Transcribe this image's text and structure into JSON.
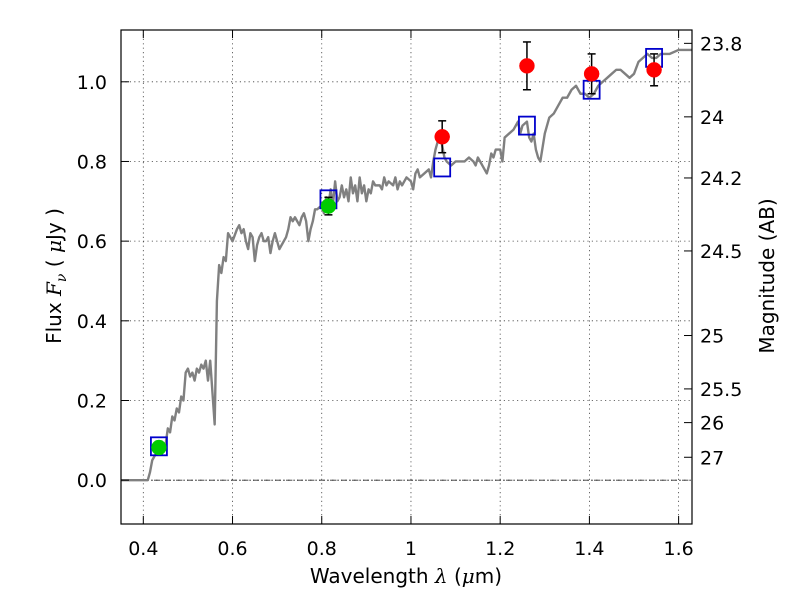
{
  "chart_data": {
    "type": "scatter",
    "xlabel": "Wavelength",
    "xlabel_symbol": "λ",
    "xlabel_unit_open": " (",
    "xlabel_unit_mu": "μ",
    "xlabel_unit_rest": "m)",
    "ylabel": "Flux",
    "ylabel_symbol": "F",
    "ylabel_subscript": "ν",
    "ylabel_unit_open": " ( ",
    "ylabel_unit_mu": "μ",
    "ylabel_unit_rest": "Jy )",
    "y2label": "Magnitude (AB)",
    "xlim": [
      0.35,
      1.63
    ],
    "ylim": [
      -0.11,
      1.13
    ],
    "grid": true,
    "x_ticks": [
      {
        "value": 0.4,
        "label": "0.4"
      },
      {
        "value": 0.6,
        "label": "0.6"
      },
      {
        "value": 0.8,
        "label": "0.8"
      },
      {
        "value": 1.0,
        "label": "1"
      },
      {
        "value": 1.2,
        "label": "1.2"
      },
      {
        "value": 1.4,
        "label": "1.4"
      },
      {
        "value": 1.6,
        "label": "1.6"
      }
    ],
    "y_ticks": [
      {
        "value": 0.0,
        "label": "0.0"
      },
      {
        "value": 0.2,
        "label": "0.2"
      },
      {
        "value": 0.4,
        "label": "0.4"
      },
      {
        "value": 0.6,
        "label": "0.6"
      },
      {
        "value": 0.8,
        "label": "0.8"
      },
      {
        "value": 1.0,
        "label": "1.0"
      }
    ],
    "y2_ticks": [
      {
        "label": "23.8",
        "flux": 1.0965
      },
      {
        "label": "24",
        "flux": 0.912
      },
      {
        "label": "24.2",
        "flux": 0.7586
      },
      {
        "label": "24.5",
        "flux": 0.5754
      },
      {
        "label": "25",
        "flux": 0.3631
      },
      {
        "label": "25.5",
        "flux": 0.2291
      },
      {
        "label": "26",
        "flux": 0.1445
      },
      {
        "label": "27",
        "flux": 0.0575
      }
    ],
    "series": [
      {
        "type": "line",
        "color": "#808080",
        "points": [
          [
            0.35,
            0.0
          ],
          [
            0.385,
            0.0
          ],
          [
            0.41,
            0.0
          ],
          [
            0.415,
            0.02
          ],
          [
            0.42,
            0.05
          ],
          [
            0.43,
            0.07
          ],
          [
            0.44,
            0.08
          ],
          [
            0.45,
            0.09
          ],
          [
            0.455,
            0.13
          ],
          [
            0.46,
            0.12
          ],
          [
            0.465,
            0.16
          ],
          [
            0.47,
            0.15
          ],
          [
            0.475,
            0.18
          ],
          [
            0.48,
            0.17
          ],
          [
            0.485,
            0.21
          ],
          [
            0.49,
            0.2
          ],
          [
            0.495,
            0.27
          ],
          [
            0.5,
            0.28
          ],
          [
            0.505,
            0.26
          ],
          [
            0.51,
            0.27
          ],
          [
            0.515,
            0.25
          ],
          [
            0.52,
            0.28
          ],
          [
            0.525,
            0.27
          ],
          [
            0.53,
            0.29
          ],
          [
            0.535,
            0.28
          ],
          [
            0.54,
            0.3
          ],
          [
            0.545,
            0.25
          ],
          [
            0.55,
            0.3
          ],
          [
            0.555,
            0.22
          ],
          [
            0.56,
            0.14
          ],
          [
            0.565,
            0.45
          ],
          [
            0.57,
            0.54
          ],
          [
            0.575,
            0.52
          ],
          [
            0.58,
            0.56
          ],
          [
            0.585,
            0.55
          ],
          [
            0.59,
            0.62
          ],
          [
            0.6,
            0.6
          ],
          [
            0.61,
            0.63
          ],
          [
            0.615,
            0.64
          ],
          [
            0.62,
            0.62
          ],
          [
            0.625,
            0.63
          ],
          [
            0.63,
            0.6
          ],
          [
            0.635,
            0.58
          ],
          [
            0.64,
            0.62
          ],
          [
            0.645,
            0.61
          ],
          [
            0.65,
            0.55
          ],
          [
            0.655,
            0.59
          ],
          [
            0.66,
            0.61
          ],
          [
            0.665,
            0.62
          ],
          [
            0.67,
            0.6
          ],
          [
            0.675,
            0.6
          ],
          [
            0.68,
            0.61
          ],
          [
            0.685,
            0.57
          ],
          [
            0.69,
            0.6
          ],
          [
            0.695,
            0.62
          ],
          [
            0.7,
            0.6
          ],
          [
            0.705,
            0.58
          ],
          [
            0.71,
            0.59
          ],
          [
            0.72,
            0.61
          ],
          [
            0.725,
            0.63
          ],
          [
            0.73,
            0.66
          ],
          [
            0.735,
            0.65
          ],
          [
            0.74,
            0.66
          ],
          [
            0.745,
            0.65
          ],
          [
            0.75,
            0.64
          ],
          [
            0.755,
            0.66
          ],
          [
            0.76,
            0.67
          ],
          [
            0.765,
            0.65
          ],
          [
            0.77,
            0.6
          ],
          [
            0.775,
            0.63
          ],
          [
            0.78,
            0.65
          ],
          [
            0.785,
            0.68
          ],
          [
            0.79,
            0.68
          ],
          [
            0.8,
            0.69
          ],
          [
            0.805,
            0.67
          ],
          [
            0.81,
            0.71
          ],
          [
            0.815,
            0.69
          ],
          [
            0.82,
            0.73
          ],
          [
            0.825,
            0.69
          ],
          [
            0.83,
            0.75
          ],
          [
            0.835,
            0.7
          ],
          [
            0.84,
            0.71
          ],
          [
            0.845,
            0.74
          ],
          [
            0.85,
            0.71
          ],
          [
            0.855,
            0.73
          ],
          [
            0.86,
            0.7
          ],
          [
            0.865,
            0.76
          ],
          [
            0.87,
            0.72
          ],
          [
            0.875,
            0.74
          ],
          [
            0.88,
            0.7
          ],
          [
            0.885,
            0.76
          ],
          [
            0.89,
            0.72
          ],
          [
            0.895,
            0.74
          ],
          [
            0.9,
            0.7
          ],
          [
            0.905,
            0.73
          ],
          [
            0.91,
            0.72
          ],
          [
            0.915,
            0.75
          ],
          [
            0.92,
            0.74
          ],
          [
            0.93,
            0.74
          ],
          [
            0.935,
            0.73
          ],
          [
            0.94,
            0.76
          ],
          [
            0.945,
            0.74
          ],
          [
            0.95,
            0.75
          ],
          [
            0.96,
            0.74
          ],
          [
            0.965,
            0.76
          ],
          [
            0.97,
            0.73
          ],
          [
            0.975,
            0.75
          ],
          [
            0.98,
            0.74
          ],
          [
            0.99,
            0.76
          ],
          [
            1.0,
            0.75
          ],
          [
            1.005,
            0.73
          ],
          [
            1.01,
            0.77
          ],
          [
            1.015,
            0.78
          ],
          [
            1.02,
            0.76
          ],
          [
            1.03,
            0.77
          ],
          [
            1.04,
            0.78
          ],
          [
            1.045,
            0.76
          ],
          [
            1.05,
            0.8
          ],
          [
            1.055,
            0.83
          ],
          [
            1.06,
            0.85
          ],
          [
            1.065,
            0.87
          ],
          [
            1.07,
            0.84
          ],
          [
            1.075,
            0.81
          ],
          [
            1.08,
            0.8
          ],
          [
            1.09,
            0.79
          ],
          [
            1.1,
            0.8
          ],
          [
            1.11,
            0.8
          ],
          [
            1.12,
            0.8
          ],
          [
            1.13,
            0.81
          ],
          [
            1.14,
            0.8
          ],
          [
            1.145,
            0.79
          ],
          [
            1.15,
            0.81
          ],
          [
            1.16,
            0.79
          ],
          [
            1.165,
            0.78
          ],
          [
            1.17,
            0.77
          ],
          [
            1.175,
            0.79
          ],
          [
            1.18,
            0.82
          ],
          [
            1.185,
            0.81
          ],
          [
            1.19,
            0.83
          ],
          [
            1.2,
            0.83
          ],
          [
            1.205,
            0.8
          ],
          [
            1.21,
            0.86
          ],
          [
            1.22,
            0.87
          ],
          [
            1.23,
            0.88
          ],
          [
            1.24,
            0.9
          ],
          [
            1.245,
            0.87
          ],
          [
            1.25,
            0.89
          ],
          [
            1.26,
            0.9
          ],
          [
            1.265,
            0.86
          ],
          [
            1.27,
            0.85
          ],
          [
            1.275,
            0.87
          ],
          [
            1.28,
            0.83
          ],
          [
            1.285,
            0.81
          ],
          [
            1.29,
            0.8
          ],
          [
            1.3,
            0.87
          ],
          [
            1.31,
            0.91
          ],
          [
            1.32,
            0.92
          ],
          [
            1.33,
            0.94
          ],
          [
            1.34,
            0.96
          ],
          [
            1.35,
            0.96
          ],
          [
            1.36,
            0.98
          ],
          [
            1.37,
            0.99
          ],
          [
            1.38,
            0.97
          ],
          [
            1.39,
            0.97
          ],
          [
            1.4,
            0.96
          ],
          [
            1.41,
            0.97
          ],
          [
            1.42,
            0.99
          ],
          [
            1.43,
            1.0
          ],
          [
            1.44,
            1.01
          ],
          [
            1.45,
            1.02
          ],
          [
            1.46,
            1.03
          ],
          [
            1.47,
            1.03
          ],
          [
            1.48,
            1.02
          ],
          [
            1.49,
            1.01
          ],
          [
            1.5,
            1.02
          ],
          [
            1.51,
            1.05
          ],
          [
            1.52,
            1.06
          ],
          [
            1.53,
            1.07
          ],
          [
            1.54,
            1.06
          ],
          [
            1.55,
            1.06
          ],
          [
            1.56,
            1.07
          ],
          [
            1.58,
            1.07
          ],
          [
            1.6,
            1.08
          ],
          [
            1.63,
            1.08
          ]
        ]
      },
      {
        "type": "scatter",
        "marker": "square",
        "color": "#0000cc",
        "points": [
          [
            0.435,
            0.085
          ],
          [
            0.815,
            0.705
          ],
          [
            1.07,
            0.785
          ],
          [
            1.26,
            0.89
          ],
          [
            1.405,
            0.98
          ],
          [
            1.545,
            1.06
          ]
        ]
      },
      {
        "type": "scatter",
        "marker": "circle",
        "color": "#00cc00",
        "points": [
          {
            "x": 0.435,
            "y": 0.082,
            "err": 0.015
          },
          {
            "x": 0.815,
            "y": 0.688,
            "err": 0.022
          }
        ]
      },
      {
        "type": "scatter",
        "marker": "circle",
        "color": "#ff0000",
        "points": [
          {
            "x": 1.07,
            "y": 0.862,
            "err": 0.04
          },
          {
            "x": 1.26,
            "y": 1.04,
            "err": 0.06
          },
          {
            "x": 1.405,
            "y": 1.02,
            "err": 0.05
          },
          {
            "x": 1.545,
            "y": 1.03,
            "err": 0.04
          }
        ]
      }
    ]
  }
}
